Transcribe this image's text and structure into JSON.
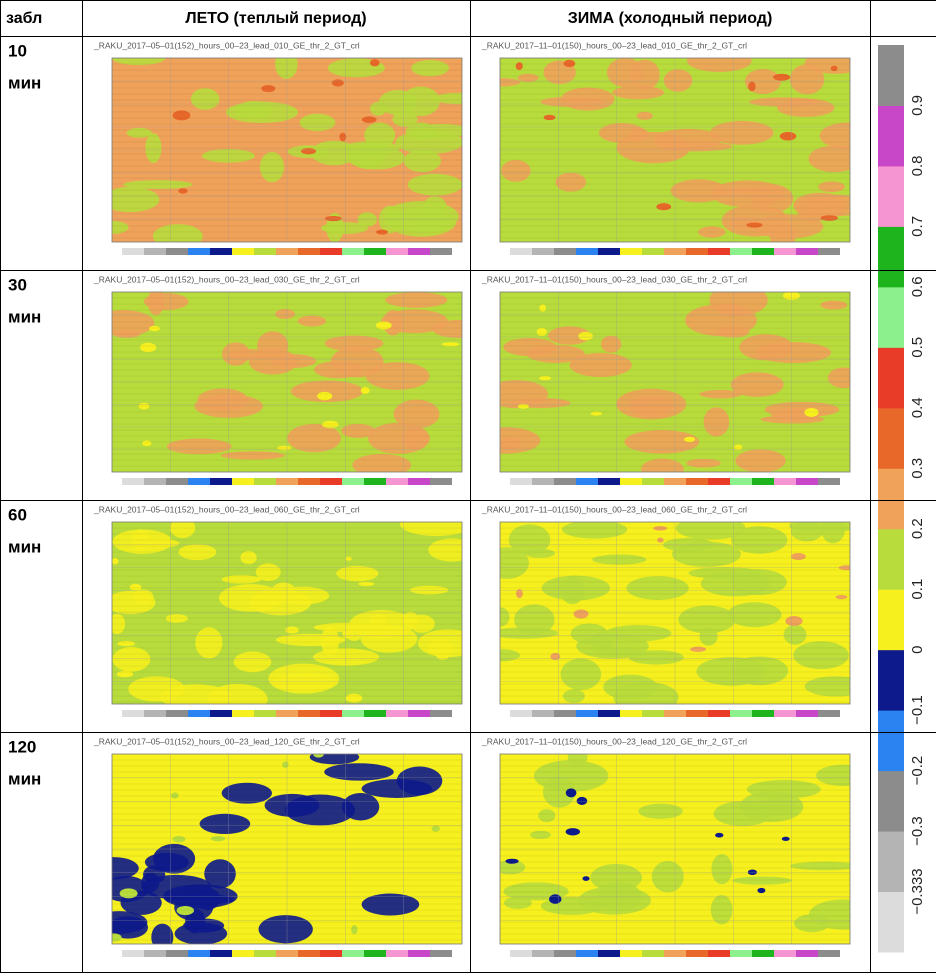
{
  "table": {
    "header": [
      "забл",
      "ЛЕТО (теплый период)",
      "ЗИМА (холодный период)"
    ],
    "rows": [
      {
        "lead": "10",
        "unit": "мин",
        "maps": [
          "_RAKU_2017–05–01(152)_hours_00–23_lead_010_GE_thr_2_GT_crl",
          "_RAKU_2017–11–01(150)_hours_00–23_lead_010_GE_thr_2_GT_crl"
        ]
      },
      {
        "lead": "30",
        "unit": "мин",
        "maps": [
          "_RAKU_2017–05–01(152)_hours_00–23_lead_030_GE_thr_2_GT_crl",
          "_RAKU_2017–11–01(150)_hours_00–23_lead_030_GE_thr_2_GT_crl"
        ]
      },
      {
        "lead": "60",
        "unit": "мин",
        "maps": [
          "_RAKU_2017–05–01(152)_hours_00–23_lead_060_GE_thr_2_GT_crl",
          "_RAKU_2017–11–01(150)_hours_00–23_lead_060_GE_thr_2_GT_crl"
        ]
      },
      {
        "lead": "120",
        "unit": "мин",
        "maps": [
          "_RAKU_2017–05–01(152)_hours_00–23_lead_120_GE_thr_2_GT_crl",
          "_RAKU_2017–11–01(150)_hours_00–23_lead_120_GE_thr_2_GT_crl"
        ]
      }
    ]
  },
  "colorbar": {
    "ticks": [
      "−0.333",
      "−0.3",
      "−0.2",
      "−0.1",
      "0",
      "0.1",
      "0.2",
      "0.3",
      "0.4",
      "0.5",
      "0.6",
      "0.7",
      "0.8",
      "0.9"
    ],
    "colors": [
      "#dcdcdc",
      "#b4b4b4",
      "#8c8c8c",
      "#2a83f0",
      "#0d1a8c",
      "#f5f01e",
      "#b8dc3c",
      "#f0a25a",
      "#e8682a",
      "#e83c28",
      "#8cf08c",
      "#1eb41e",
      "#f596d2",
      "#c846c8",
      "#8c8c8c"
    ]
  }
}
